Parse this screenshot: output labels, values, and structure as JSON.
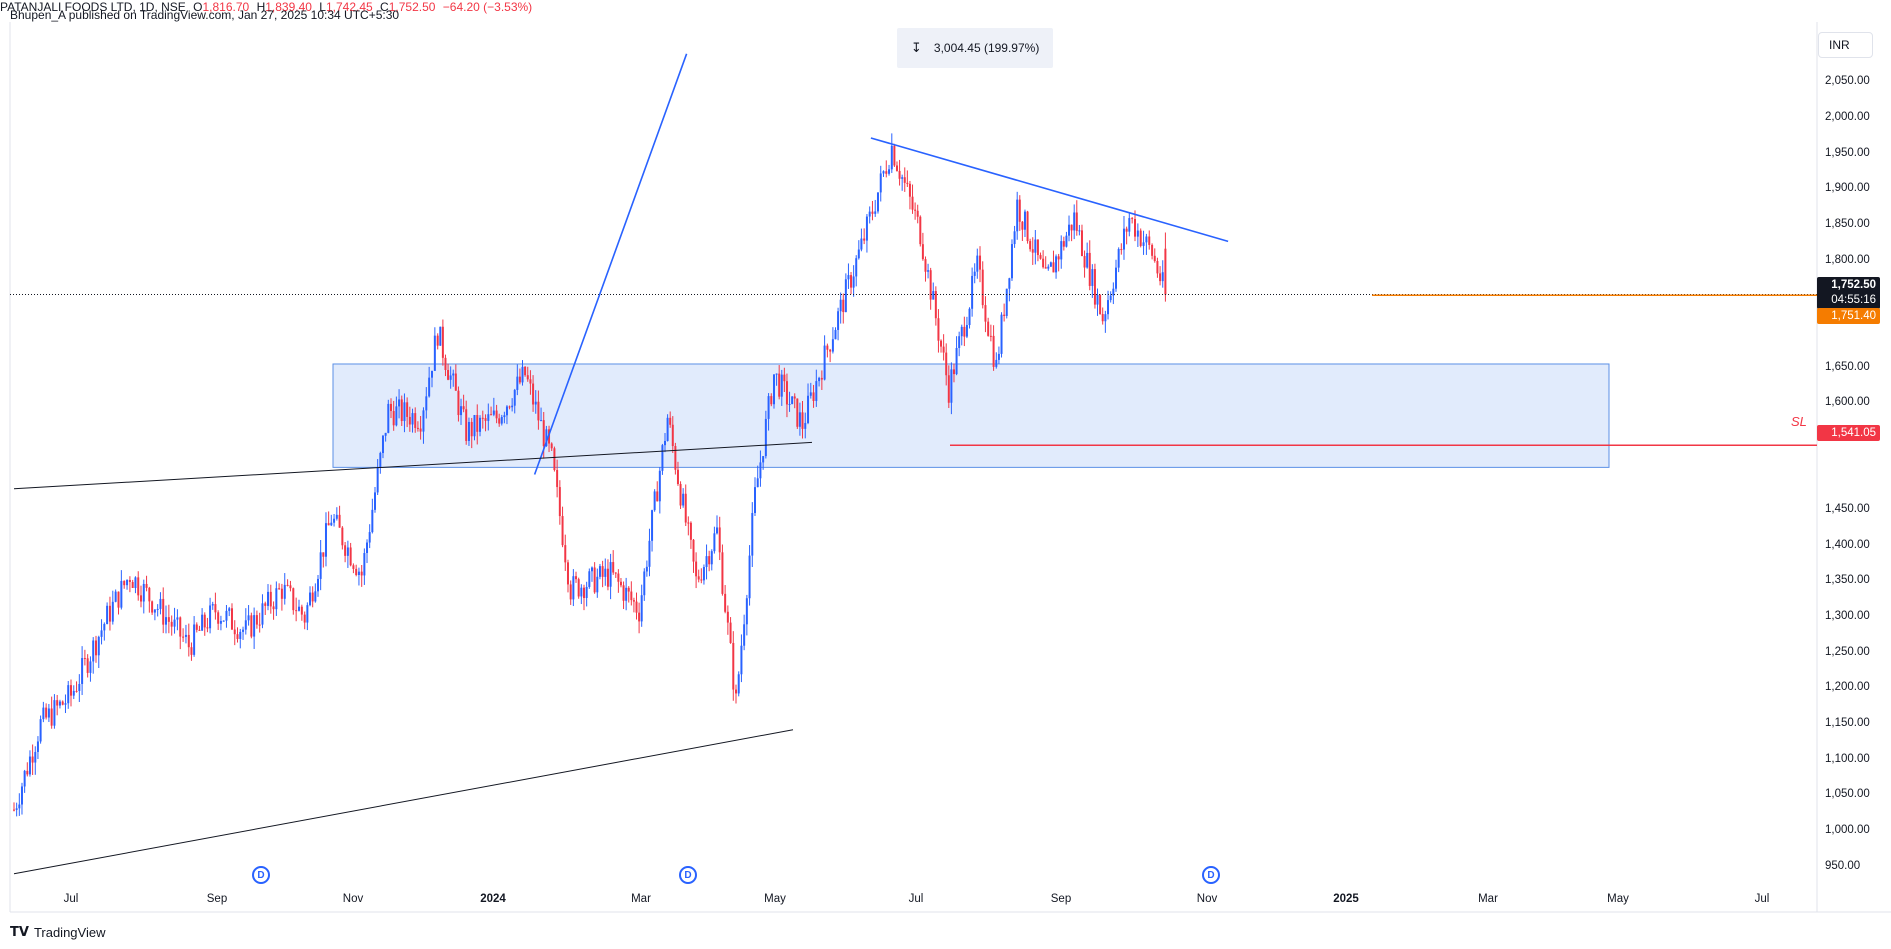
{
  "publisher_line": "Bhupen_A published on TradingView.com, Jan 27, 2025 10:34 UTC+5:30",
  "legend": {
    "symbol": "PATANJALI FOODS LTD, 1D, NSE",
    "o_label": "O",
    "o_value": "1,816.70",
    "h_label": "H",
    "h_value": "1,839.40",
    "l_label": "L",
    "l_value": "1,742.45",
    "c_label": "C",
    "c_value": "1,752.50",
    "change": "−64.20 (−3.53%)"
  },
  "measure": {
    "icon": "range-measure-icon",
    "text": "3,004.45 (199.97%)"
  },
  "currency_button": "INR",
  "price_tags": {
    "last_price": "1,752.50",
    "countdown": "04:55:16",
    "reference": "1,751.40",
    "sl_price": "1,541.05",
    "sl_label": "SL"
  },
  "dividend_marker_label": "D",
  "brand": "TradingView",
  "colors": {
    "up": "#2962ff",
    "down": "#f23645",
    "trendline_blue": "#2962ff",
    "trendline_dark": "#131722",
    "zone_fill": "#dce8fb",
    "zone_border": "#5b8fe6",
    "sl_line": "#f23645",
    "ref_line": "#f57c00"
  },
  "chart_data": {
    "type": "candlestick",
    "symbol": "PATANJALI FOODS LTD",
    "interval": "1D",
    "exchange": "NSE",
    "currency": "INR",
    "y_ticks": [
      "2,050.00",
      "2,000.00",
      "1,950.00",
      "1,900.00",
      "1,850.00",
      "1,800.00",
      "1,650.00",
      "1,600.00",
      "1,450.00",
      "1,400.00",
      "1,350.00",
      "1,300.00",
      "1,250.00",
      "1,200.00",
      "1,150.00",
      "1,100.00",
      "1,050.00",
      "1,000.00",
      "950.00"
    ],
    "ylim": [
      935,
      2085
    ],
    "x_ticks": [
      {
        "label": "Jul",
        "bold": false
      },
      {
        "label": "Sep",
        "bold": false
      },
      {
        "label": "Nov",
        "bold": false
      },
      {
        "label": "2024",
        "bold": true
      },
      {
        "label": "Mar",
        "bold": false
      },
      {
        "label": "May",
        "bold": false
      },
      {
        "label": "Jul",
        "bold": false
      },
      {
        "label": "Sep",
        "bold": false
      },
      {
        "label": "Nov",
        "bold": false
      },
      {
        "label": "2025",
        "bold": true
      },
      {
        "label": "Mar",
        "bold": false
      },
      {
        "label": "May",
        "bold": false
      },
      {
        "label": "Jul",
        "bold": false
      }
    ],
    "price_path": [
      {
        "date": "2023-06-01",
        "close": 1030
      },
      {
        "date": "2023-06-15",
        "close": 1150
      },
      {
        "date": "2023-07-01",
        "close": 1190
      },
      {
        "date": "2023-07-20",
        "close": 1300
      },
      {
        "date": "2023-08-01",
        "close": 1360
      },
      {
        "date": "2023-08-20",
        "close": 1300
      },
      {
        "date": "2023-09-01",
        "close": 1260
      },
      {
        "date": "2023-09-15",
        "close": 1310
      },
      {
        "date": "2023-10-01",
        "close": 1280
      },
      {
        "date": "2023-10-20",
        "close": 1340
      },
      {
        "date": "2023-11-01",
        "close": 1300
      },
      {
        "date": "2023-11-15",
        "close": 1440
      },
      {
        "date": "2023-12-01",
        "close": 1360
      },
      {
        "date": "2023-12-15",
        "close": 1590
      },
      {
        "date": "2024-01-01",
        "close": 1580
      },
      {
        "date": "2024-01-10",
        "close": 1700
      },
      {
        "date": "2024-01-25",
        "close": 1560
      },
      {
        "date": "2024-02-10",
        "close": 1580
      },
      {
        "date": "2024-02-25",
        "close": 1640
      },
      {
        "date": "2024-03-10",
        "close": 1520
      },
      {
        "date": "2024-03-20",
        "close": 1340
      },
      {
        "date": "2024-04-10",
        "close": 1360
      },
      {
        "date": "2024-04-25",
        "close": 1310
      },
      {
        "date": "2024-05-10",
        "close": 1580
      },
      {
        "date": "2024-05-25",
        "close": 1350
      },
      {
        "date": "2024-06-05",
        "close": 1420
      },
      {
        "date": "2024-06-15",
        "close": 1180
      },
      {
        "date": "2024-06-25",
        "close": 1470
      },
      {
        "date": "2024-07-05",
        "close": 1640
      },
      {
        "date": "2024-07-20",
        "close": 1570
      },
      {
        "date": "2024-08-05",
        "close": 1700
      },
      {
        "date": "2024-08-20",
        "close": 1820
      },
      {
        "date": "2024-09-05",
        "close": 1960
      },
      {
        "date": "2024-09-20",
        "close": 1840
      },
      {
        "date": "2024-10-05",
        "close": 1620
      },
      {
        "date": "2024-10-20",
        "close": 1790
      },
      {
        "date": "2024-10-30",
        "close": 1650
      },
      {
        "date": "2024-11-10",
        "close": 1880
      },
      {
        "date": "2024-11-25",
        "close": 1770
      },
      {
        "date": "2024-12-10",
        "close": 1860
      },
      {
        "date": "2024-12-25",
        "close": 1720
      },
      {
        "date": "2025-01-08",
        "close": 1860
      },
      {
        "date": "2025-01-20",
        "close": 1810
      },
      {
        "date": "2025-01-27",
        "close": 1752.5
      }
    ],
    "last_close": 1752.5,
    "stop_loss": 1541.05,
    "support_resistance_zone": [
      1510,
      1655
    ],
    "drawings": [
      {
        "type": "trendline",
        "color": "blue",
        "from": {
          "date": "2024-08-25",
          "price": 1972
        },
        "to": {
          "date": "2025-03-01",
          "price": 1827
        }
      },
      {
        "type": "trendline",
        "color": "blue",
        "from": {
          "date": "2024-03-01",
          "price": 1500
        },
        "to": {
          "date": "2024-05-20",
          "price": 2090
        }
      },
      {
        "type": "trendline",
        "color": "dark",
        "from": {
          "date": "2023-06-01",
          "price": 1480
        },
        "to": {
          "date": "2024-07-25",
          "price": 1545
        }
      },
      {
        "type": "trendline",
        "color": "dark",
        "from": {
          "date": "2023-06-01",
          "price": 940
        },
        "to": {
          "date": "2024-07-15",
          "price": 1142
        }
      }
    ],
    "dividend_markers": [
      "2023-10-25",
      "2024-03-20",
      "2024-11-01"
    ]
  }
}
